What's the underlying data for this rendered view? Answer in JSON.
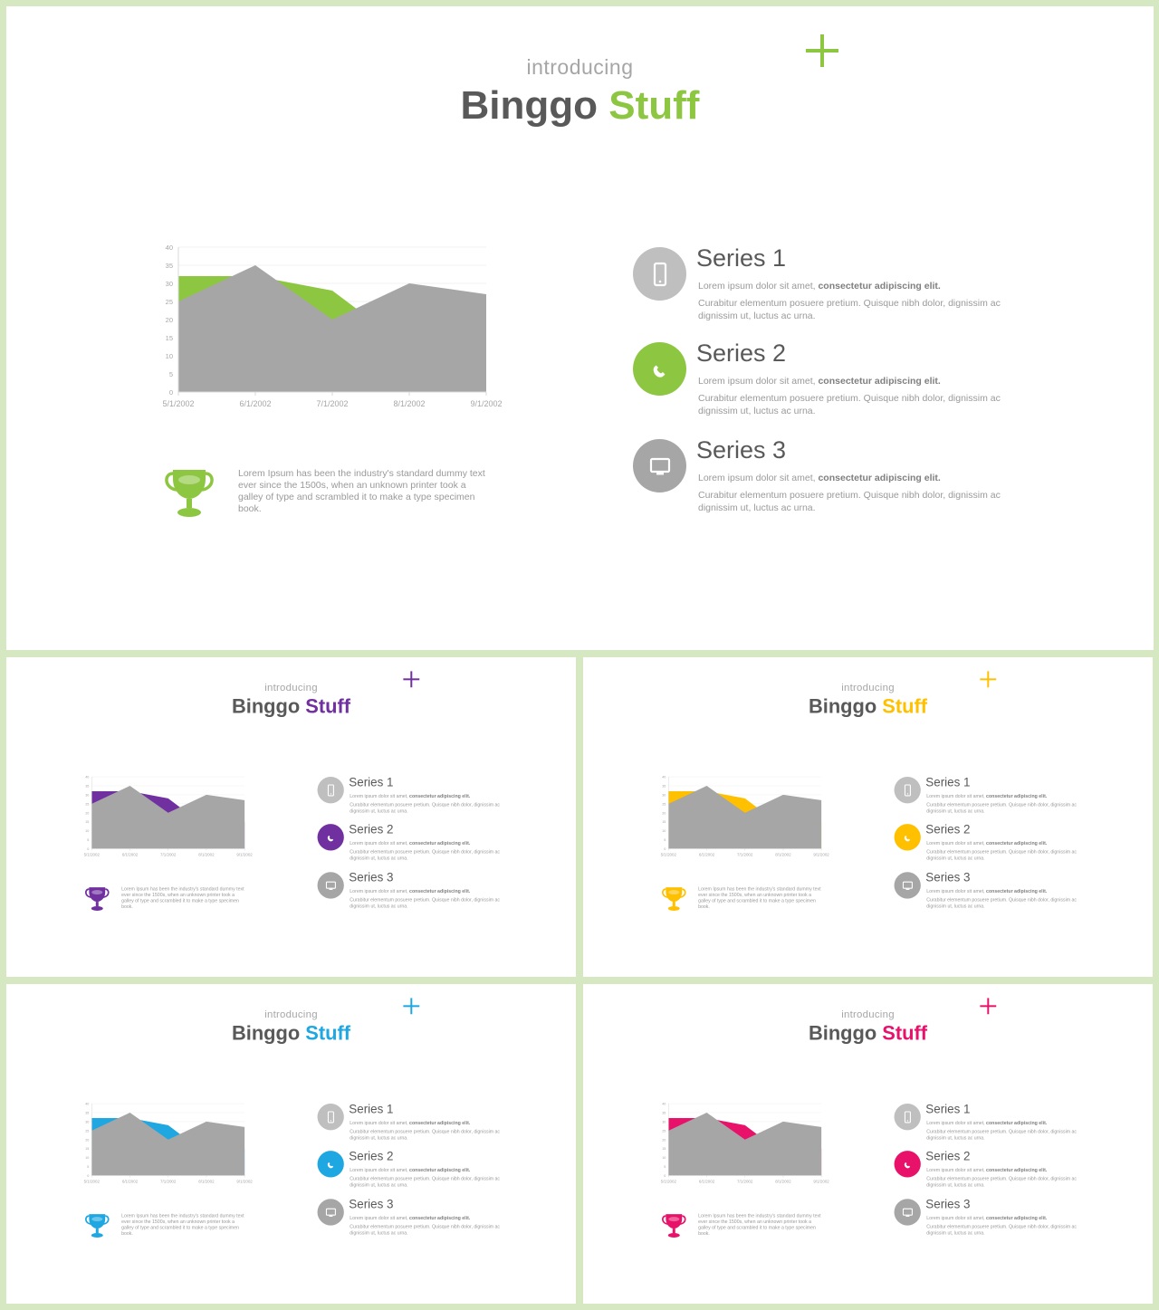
{
  "slides": [
    {
      "accent": "#8dc641"
    },
    {
      "accent": "#7030a0"
    },
    {
      "accent": "#ffc000"
    },
    {
      "accent": "#1ea7e1"
    },
    {
      "accent": "#e8126b"
    }
  ],
  "slide_text": {
    "intro": "introducing",
    "title_main": "Binggo",
    "title_accent": "Stuff",
    "trophy_text": "Lorem Ipsum has been the industry's standard dummy text ever since the 1500s, when an unknown printer took a galley of type and scrambled it to make a type specimen book.",
    "series": [
      {
        "title": "Series 1",
        "icon": "smartphone-icon",
        "line1_plain": "Lorem ipsum dolor sit amet, ",
        "line1_bold": "consectetur adipiscing elit.",
        "line2": "Curabitur elementum posuere pretium. Quisque nibh dolor, dignissim ac dignissim ut, luctus ac urna."
      },
      {
        "title": "Series 2",
        "icon": "phone-icon",
        "line1_plain": "Lorem ipsum dolor sit amet, ",
        "line1_bold": "consectetur adipiscing elit.",
        "line2": "Curabitur elementum posuere pretium. Quisque nibh dolor, dignissim ac dignissim ut, luctus ac urna."
      },
      {
        "title": "Series 3",
        "icon": "monitor-icon",
        "line1_plain": "Lorem ipsum dolor sit amet, ",
        "line1_bold": "consectetur adipiscing elit.",
        "line2": "Curabitur elementum posuere pretium. Quisque nibh dolor, dignissim ac dignissim ut, luctus ac urna."
      }
    ]
  },
  "colors": {
    "gray_series": "#a6a6a6",
    "icon_gray_light": "#bfbfbf",
    "icon_gray_dark": "#a6a6a6"
  },
  "chart_data": {
    "type": "area",
    "x": [
      "5/1/2002",
      "6/1/2002",
      "7/1/2002",
      "8/1/2002",
      "9/1/2002"
    ],
    "y_ticks": [
      0,
      5,
      10,
      15,
      20,
      25,
      30,
      35,
      40
    ],
    "ylim": [
      0,
      40
    ],
    "series": [
      {
        "color_role": "accent",
        "values": [
          32,
          32,
          28,
          12,
          15
        ]
      },
      {
        "color_role": "gray",
        "values": [
          25,
          35,
          20,
          30,
          27
        ]
      }
    ],
    "grid": true
  }
}
